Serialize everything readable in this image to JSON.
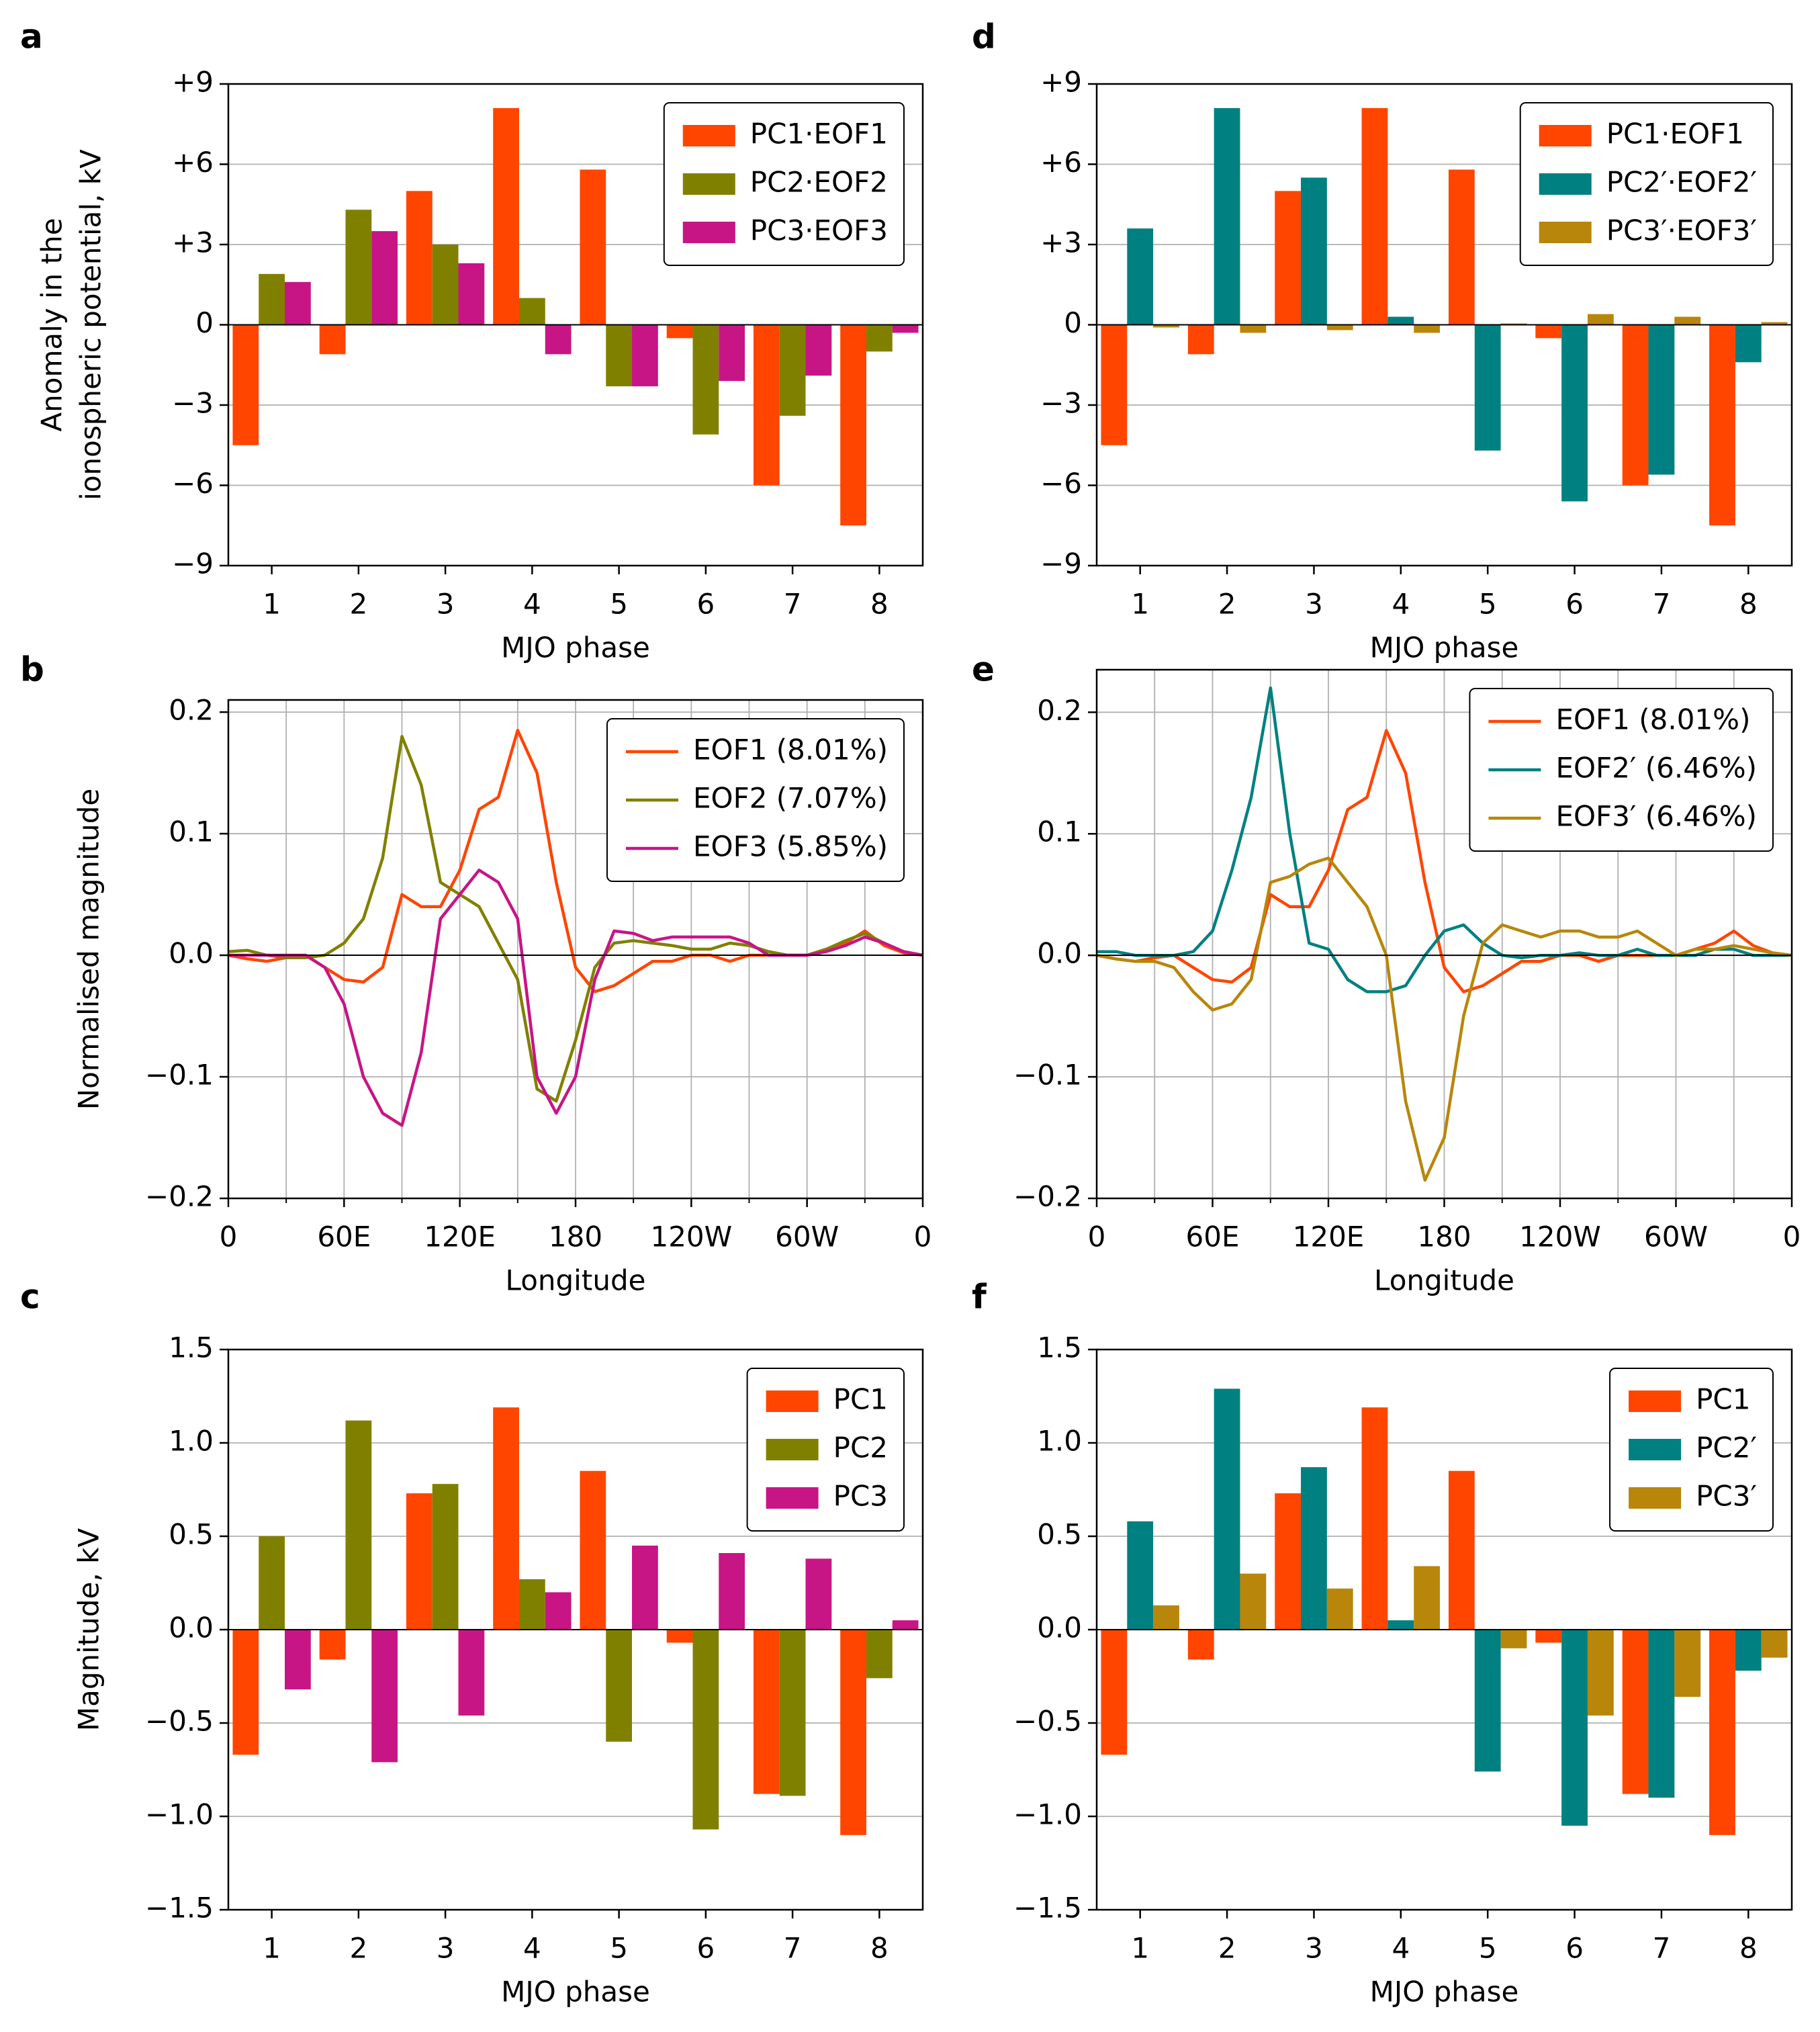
{
  "chart_data": [
    {
      "type": "bar",
      "label": "a",
      "ylabel": [
        "Anomaly in the",
        "ionospheric potential, kV"
      ],
      "xlabel": "MJO phase",
      "categories": [
        "1",
        "2",
        "3",
        "4",
        "5",
        "6",
        "7",
        "8"
      ],
      "series": [
        {
          "name": "PC1·EOF1",
          "color": "#ff4500",
          "values": [
            -4.5,
            -1.1,
            5.0,
            8.1,
            5.8,
            -0.5,
            -6.0,
            -7.5
          ]
        },
        {
          "name": "PC2·EOF2",
          "color": "#808000",
          "values": [
            1.9,
            4.3,
            3.0,
            1.0,
            -2.3,
            -4.1,
            -3.4,
            -1.0
          ]
        },
        {
          "name": "PC3·EOF3",
          "color": "#c71585",
          "values": [
            1.6,
            3.5,
            2.3,
            -1.1,
            -2.3,
            -2.1,
            -1.9,
            -0.3
          ]
        }
      ],
      "ylim": [
        -9,
        9
      ],
      "yticks": [
        {
          "value": -9,
          "label": "−9"
        },
        {
          "value": -6,
          "label": "−6"
        },
        {
          "value": -3,
          "label": "−3"
        },
        0,
        {
          "value": 3,
          "label": "+3"
        },
        {
          "value": 6,
          "label": "+6"
        },
        {
          "value": 9,
          "label": "+9"
        }
      ],
      "grid": true,
      "legend": "upper right"
    },
    {
      "type": "line",
      "label": "b",
      "ylabel": "Normalised magnitude",
      "xlabel": "Longitude",
      "x": [
        0,
        10,
        20,
        30,
        40,
        50,
        60,
        70,
        80,
        90,
        100,
        110,
        120,
        130,
        140,
        150,
        160,
        170,
        180,
        190,
        200,
        210,
        220,
        230,
        240,
        250,
        260,
        270,
        280,
        290,
        300,
        310,
        320,
        330,
        340,
        350,
        360
      ],
      "series": [
        {
          "name": "EOF1 (8.01%)",
          "color": "#ff4500",
          "values": [
            0,
            -0.003,
            -0.005,
            -0.002,
            0,
            -0.01,
            -0.02,
            -0.022,
            -0.01,
            0.05,
            0.04,
            0.04,
            0.07,
            0.12,
            0.13,
            0.185,
            0.15,
            0.06,
            -0.01,
            -0.03,
            -0.025,
            -0.015,
            -0.005,
            -0.005,
            0,
            0,
            -0.005,
            0,
            0,
            0,
            0,
            0.005,
            0.01,
            0.02,
            0.008,
            0.002,
            0
          ]
        },
        {
          "name": "EOF2 (7.07%)",
          "color": "#808000",
          "values": [
            0.003,
            0.004,
            0,
            -0.002,
            -0.002,
            0,
            0.01,
            0.03,
            0.08,
            0.18,
            0.14,
            0.06,
            0.05,
            0.04,
            0.01,
            -0.02,
            -0.11,
            -0.12,
            -0.07,
            -0.01,
            0.01,
            0.012,
            0.01,
            0.008,
            0.005,
            0.005,
            0.01,
            0.008,
            0.003,
            0,
            0,
            0.005,
            0.012,
            0.018,
            0.01,
            0.003,
            0
          ]
        },
        {
          "name": "EOF3 (5.85%)",
          "color": "#c71585",
          "values": [
            0,
            0,
            0,
            0,
            0,
            -0.01,
            -0.04,
            -0.1,
            -0.13,
            -0.14,
            -0.08,
            0.03,
            0.05,
            0.07,
            0.06,
            0.03,
            -0.1,
            -0.13,
            -0.1,
            -0.02,
            0.02,
            0.018,
            0.012,
            0.015,
            0.015,
            0.015,
            0.015,
            0.01,
            0,
            0,
            0,
            0.003,
            0.008,
            0.015,
            0.01,
            0.003,
            0
          ]
        }
      ],
      "xlim": [
        0,
        360
      ],
      "xticks": [
        0,
        {
          "value": 60,
          "label": "60E"
        },
        {
          "value": 120,
          "label": "120E"
        },
        180,
        {
          "value": 240,
          "label": "120W"
        },
        {
          "value": 300,
          "label": "60W"
        },
        {
          "value": 360,
          "label": "0"
        }
      ],
      "xticks_minor": [
        30,
        90,
        150,
        210,
        270,
        330
      ],
      "ylim": [
        -0.2,
        0.21
      ],
      "yticks": [
        {
          "value": -0.2,
          "label": "−0.2"
        },
        {
          "value": -0.1,
          "label": "−0.1"
        },
        {
          "value": 0,
          "label": "0.0"
        },
        0.1,
        0.2
      ],
      "grid": true,
      "legend": "upper right"
    },
    {
      "type": "bar",
      "label": "c",
      "ylabel": "Magnitude, kV",
      "xlabel": "MJO phase",
      "categories": [
        "1",
        "2",
        "3",
        "4",
        "5",
        "6",
        "7",
        "8"
      ],
      "series": [
        {
          "name": "PC1",
          "color": "#ff4500",
          "values": [
            -0.67,
            -0.16,
            0.73,
            1.19,
            0.85,
            -0.07,
            -0.88,
            -1.1
          ]
        },
        {
          "name": "PC2",
          "color": "#808000",
          "values": [
            0.5,
            1.12,
            0.78,
            0.27,
            -0.6,
            -1.07,
            -0.89,
            -0.26
          ]
        },
        {
          "name": "PC3",
          "color": "#c71585",
          "values": [
            -0.32,
            -0.71,
            -0.46,
            0.2,
            0.45,
            0.41,
            0.38,
            0.05
          ]
        }
      ],
      "ylim": [
        -1.5,
        1.5
      ],
      "yticks": [
        {
          "value": -1.5,
          "label": "−1.5"
        },
        {
          "value": -1.0,
          "label": "−1.0"
        },
        {
          "value": -0.5,
          "label": "−0.5"
        },
        {
          "value": 0,
          "label": "0.0"
        },
        0.5,
        {
          "value": 1.0,
          "label": "1.0"
        },
        1.5
      ],
      "grid": true,
      "legend": "upper right"
    },
    {
      "type": "bar",
      "label": "d",
      "xlabel": "MJO phase",
      "categories": [
        "1",
        "2",
        "3",
        "4",
        "5",
        "6",
        "7",
        "8"
      ],
      "series": [
        {
          "name": "PC1·EOF1",
          "color": "#ff4500",
          "values": [
            -4.5,
            -1.1,
            5.0,
            8.1,
            5.8,
            -0.5,
            -6.0,
            -7.5
          ]
        },
        {
          "name": "PC2′·EOF2′",
          "color": "#008080",
          "values": [
            3.6,
            8.1,
            5.5,
            0.3,
            -4.7,
            -6.6,
            -5.6,
            -1.4
          ]
        },
        {
          "name": "PC3′·EOF3′",
          "color": "#b8860b",
          "values": [
            -0.1,
            -0.3,
            -0.2,
            -0.3,
            0.05,
            0.4,
            0.3,
            0.1
          ]
        }
      ],
      "ylim": [
        -9,
        9
      ],
      "yticks": [
        {
          "value": -9,
          "label": "−9"
        },
        {
          "value": -6,
          "label": "−6"
        },
        {
          "value": -3,
          "label": "−3"
        },
        0,
        {
          "value": 3,
          "label": "+3"
        },
        {
          "value": 6,
          "label": "+6"
        },
        {
          "value": 9,
          "label": "+9"
        }
      ],
      "grid": true,
      "legend": "upper right"
    },
    {
      "type": "line",
      "label": "e",
      "xlabel": "Longitude",
      "x": [
        0,
        10,
        20,
        30,
        40,
        50,
        60,
        70,
        80,
        90,
        100,
        110,
        120,
        130,
        140,
        150,
        160,
        170,
        180,
        190,
        200,
        210,
        220,
        230,
        240,
        250,
        260,
        270,
        280,
        290,
        300,
        310,
        320,
        330,
        340,
        350,
        360
      ],
      "series": [
        {
          "name": "EOF1 (8.01%)",
          "color": "#ff4500",
          "values": [
            0,
            -0.003,
            -0.005,
            -0.002,
            0,
            -0.01,
            -0.02,
            -0.022,
            -0.01,
            0.05,
            0.04,
            0.04,
            0.07,
            0.12,
            0.13,
            0.185,
            0.15,
            0.06,
            -0.01,
            -0.03,
            -0.025,
            -0.015,
            -0.005,
            -0.005,
            0,
            0,
            -0.005,
            0,
            0,
            0,
            0,
            0.005,
            0.01,
            0.02,
            0.008,
            0.002,
            0
          ]
        },
        {
          "name": "EOF2′ (6.46%)",
          "color": "#008080",
          "values": [
            0.003,
            0.003,
            0,
            0,
            0,
            0.003,
            0.02,
            0.07,
            0.13,
            0.22,
            0.1,
            0.01,
            0.005,
            -0.02,
            -0.03,
            -0.03,
            -0.025,
            0,
            0.02,
            0.025,
            0.01,
            0,
            -0.002,
            0,
            0,
            0.002,
            0,
            0,
            0.005,
            0,
            0,
            0,
            0.005,
            0.005,
            0,
            0,
            0
          ]
        },
        {
          "name": "EOF3′ (6.46%)",
          "color": "#b8860b",
          "values": [
            0,
            -0.003,
            -0.005,
            -0.005,
            -0.01,
            -0.03,
            -0.045,
            -0.04,
            -0.02,
            0.06,
            0.065,
            0.075,
            0.08,
            0.06,
            0.04,
            0,
            -0.12,
            -0.185,
            -0.15,
            -0.05,
            0.01,
            0.025,
            0.02,
            0.015,
            0.02,
            0.02,
            0.015,
            0.015,
            0.02,
            0.01,
            0,
            0.005,
            0.005,
            0.008,
            0.005,
            0.002,
            0
          ]
        }
      ],
      "xlim": [
        0,
        360
      ],
      "xticks": [
        0,
        {
          "value": 60,
          "label": "60E"
        },
        {
          "value": 120,
          "label": "120E"
        },
        180,
        {
          "value": 240,
          "label": "120W"
        },
        {
          "value": 300,
          "label": "60W"
        },
        {
          "value": 360,
          "label": "0"
        }
      ],
      "xticks_minor": [
        30,
        90,
        150,
        210,
        270,
        330
      ],
      "ylim": [
        -0.2,
        0.235
      ],
      "yticks": [
        {
          "value": -0.2,
          "label": "−0.2"
        },
        {
          "value": -0.1,
          "label": "−0.1"
        },
        {
          "value": 0,
          "label": "0.0"
        },
        0.1,
        0.2
      ],
      "grid": true,
      "legend": "upper right"
    },
    {
      "type": "bar",
      "label": "f",
      "xlabel": "MJO phase",
      "categories": [
        "1",
        "2",
        "3",
        "4",
        "5",
        "6",
        "7",
        "8"
      ],
      "series": [
        {
          "name": "PC1",
          "color": "#ff4500",
          "values": [
            -0.67,
            -0.16,
            0.73,
            1.19,
            0.85,
            -0.07,
            -0.88,
            -1.1
          ]
        },
        {
          "name": "PC2′",
          "color": "#008080",
          "values": [
            0.58,
            1.29,
            0.87,
            0.05,
            -0.76,
            -1.05,
            -0.9,
            -0.22
          ]
        },
        {
          "name": "PC3′",
          "color": "#b8860b",
          "values": [
            0.13,
            0.3,
            0.22,
            0.34,
            -0.1,
            -0.46,
            -0.36,
            -0.15
          ]
        }
      ],
      "ylim": [
        -1.5,
        1.5
      ],
      "yticks": [
        {
          "value": -1.5,
          "label": "−1.5"
        },
        {
          "value": -1.0,
          "label": "−1.0"
        },
        {
          "value": -0.5,
          "label": "−0.5"
        },
        {
          "value": 0,
          "label": "0.0"
        },
        0.5,
        {
          "value": 1.0,
          "label": "1.0"
        },
        1.5
      ],
      "grid": true,
      "legend": "upper right"
    }
  ]
}
